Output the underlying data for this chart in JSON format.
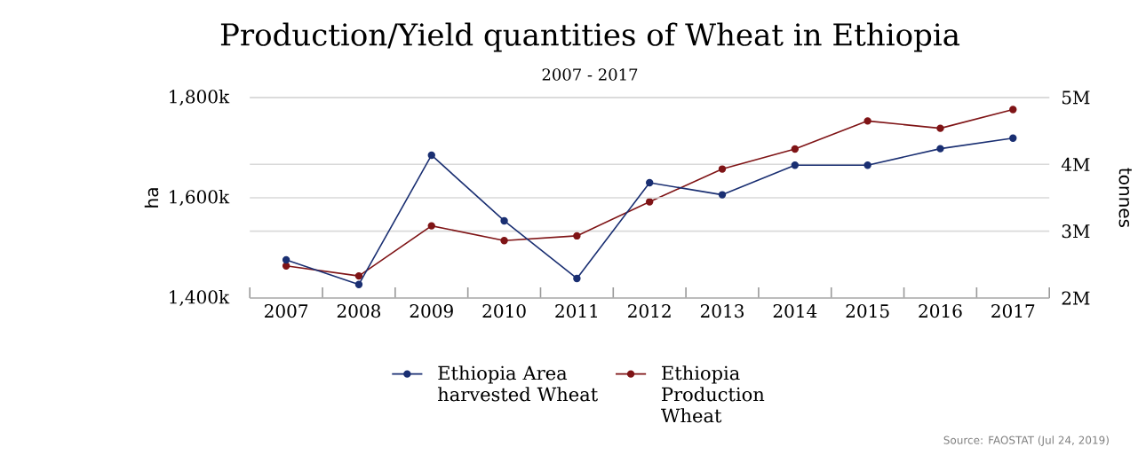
{
  "chart_data": {
    "type": "line",
    "title": "Production/Yield quantities of Wheat in Ethiopia",
    "subtitle": "2007 - 2017",
    "ylabel": "ha",
    "y2label": "tonnes",
    "categories": [
      "2007",
      "2008",
      "2009",
      "2010",
      "2011",
      "2012",
      "2013",
      "2014",
      "2015",
      "2016",
      "2017"
    ],
    "series": [
      {
        "name": "Ethiopia Area harvested Wheat",
        "color": "#1a2f72",
        "axis": "y",
        "values": [
          1476000,
          1427000,
          1685000,
          1554000,
          1439000,
          1630000,
          1606000,
          1665000,
          1665000,
          1698000,
          1719000
        ]
      },
      {
        "name": "Ethiopia Production Wheat",
        "color": "#7f1416",
        "axis": "y2",
        "values": [
          2480000,
          2330000,
          3080000,
          2860000,
          2930000,
          3440000,
          3930000,
          4230000,
          4650000,
          4540000,
          4820000
        ]
      }
    ],
    "ylim": [
      1400000,
      1800000
    ],
    "yticks": [
      {
        "value": 1400000,
        "label": "1,400k"
      },
      {
        "value": 1600000,
        "label": "1,600k"
      },
      {
        "value": 1800000,
        "label": "1,800k"
      }
    ],
    "y2lim": [
      2000000,
      5000000
    ],
    "y2ticks": [
      {
        "value": 2000000,
        "label": "2M"
      },
      {
        "value": 3000000,
        "label": "3M"
      },
      {
        "value": 4000000,
        "label": "4M"
      },
      {
        "value": 5000000,
        "label": "5M"
      }
    ],
    "grid": "y",
    "legend": "bottom",
    "marker": "circle",
    "line_style": "solid",
    "annotations": [
      "Source: FAOSTAT (Jul 24, 2019)"
    ]
  }
}
